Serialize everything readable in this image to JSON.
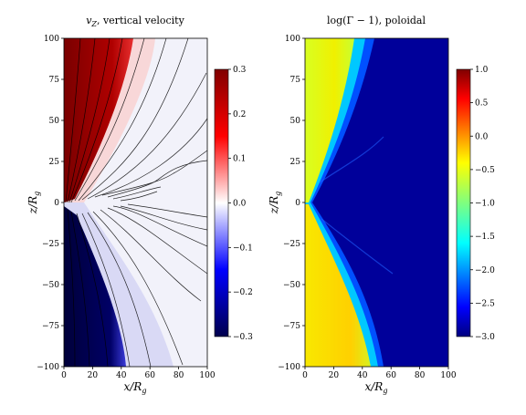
{
  "chart_data": [
    {
      "type": "heatmap",
      "title": "v_Z, vertical velocity",
      "title_parts": {
        "main": "v",
        "sub": "Z",
        "rest": ", vertical velocity"
      },
      "xlabel": "x/R_g",
      "ylabel": "z/R_g",
      "xlim": [
        0,
        100
      ],
      "ylim": [
        -100,
        100
      ],
      "x_ticks": [
        "0",
        "20",
        "40",
        "60",
        "80",
        "100"
      ],
      "y_ticks": [
        "100",
        "75",
        "50",
        "25",
        "0",
        "−25",
        "−50",
        "−75",
        "−100"
      ],
      "colorbar": {
        "range": [
          -0.3,
          0.3
        ],
        "ticks": [
          "0.3",
          "0.2",
          "0.1",
          "0.0",
          "−0.1",
          "−0.2",
          "−0.3"
        ],
        "colormap": "seismic",
        "colors": [
          "#00004d",
          "#0000ff",
          "#ffffff",
          "#ff0000",
          "#800000"
        ]
      },
      "contours": true
    },
    {
      "type": "heatmap",
      "title": "log(Γ − 1), poloidal",
      "xlabel": "x/R_g",
      "ylabel": "z/R_g",
      "xlim": [
        0,
        100
      ],
      "ylim": [
        -100,
        100
      ],
      "x_ticks": [
        "0",
        "20",
        "40",
        "60",
        "80",
        "100"
      ],
      "y_ticks": [
        "100",
        "75",
        "50",
        "25",
        "0",
        "−25",
        "−50",
        "−75",
        "−100"
      ],
      "colorbar": {
        "range": [
          -3.0,
          1.0
        ],
        "ticks": [
          "1.0",
          "0.5",
          "0.0",
          "−0.5",
          "−1.0",
          "−1.5",
          "−2.0",
          "−2.5",
          "−3.0"
        ],
        "colormap": "jet",
        "colors": [
          "#00007f",
          "#0000ff",
          "#00ffff",
          "#7fff7f",
          "#ffff00",
          "#ff0000",
          "#7f0000"
        ]
      }
    }
  ]
}
